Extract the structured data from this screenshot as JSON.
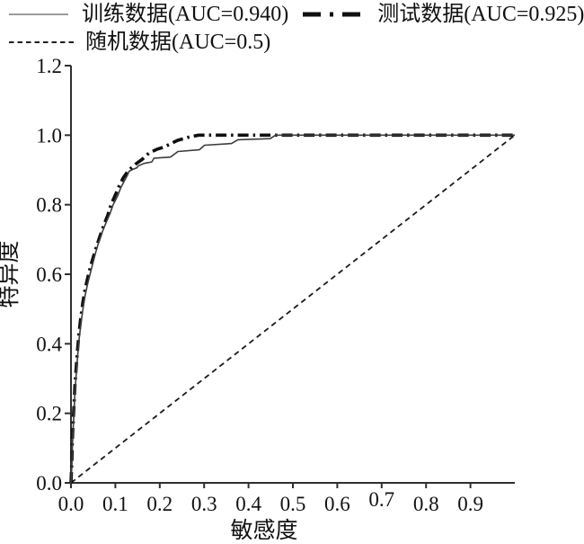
{
  "figure": {
    "background": "#ffffff",
    "axis_color": "#2f2f2f",
    "text_color": "#111111"
  },
  "legend": {
    "position": "top",
    "items": [
      {
        "id": "training",
        "label": "训练数据(AUC=0.940)",
        "marker": "solid-thin-line",
        "marker_color": "#9b9b9b",
        "marker_width": 2,
        "marker_dash": "",
        "marker_len": 66
      },
      {
        "id": "test",
        "label": "测试数据(AUC=0.925)",
        "marker": "thick-dash-dot-line",
        "marker_color": "#0f0f0f",
        "marker_width": 5,
        "marker_dash": "20 10 4 10",
        "marker_len": 70
      },
      {
        "id": "random",
        "label": "随机数据(AUC=0.5)",
        "marker": "dashed-line",
        "marker_color": "#1f1f1f",
        "marker_width": 2,
        "marker_dash": "5.5 4",
        "marker_len": 72
      }
    ]
  },
  "chart_data": {
    "type": "line",
    "title": "",
    "xlabel": "敏感度",
    "ylabel": "特异度",
    "xlim": [
      0,
      1.0
    ],
    "ylim": [
      0,
      1.2
    ],
    "grid": false,
    "legend_position": "top",
    "axis_color": "#2f2f2f",
    "x_ticks": [
      {
        "v": 0.0,
        "label": "0.0",
        "dy": 0
      },
      {
        "v": 0.1,
        "label": "0.1",
        "dy": 0
      },
      {
        "v": 0.2,
        "label": "0.2",
        "dy": 0
      },
      {
        "v": 0.3,
        "label": "0.3",
        "dy": 0
      },
      {
        "v": 0.4,
        "label": "0.4",
        "dy": 0
      },
      {
        "v": 0.5,
        "label": "0.5",
        "dy": 0
      },
      {
        "v": 0.6,
        "label": "0.6",
        "dy": 0
      },
      {
        "v": 0.7,
        "label": "0.7",
        "dy": -5
      },
      {
        "v": 0.8,
        "label": "0.8",
        "dy": 0
      },
      {
        "v": 0.9,
        "label": "0.9",
        "dy": 0
      }
    ],
    "y_ticks": [
      {
        "v": 0.0,
        "label": "0.0"
      },
      {
        "v": 0.2,
        "label": "0.2"
      },
      {
        "v": 0.4,
        "label": "0.4"
      },
      {
        "v": 0.6,
        "label": "0.6"
      },
      {
        "v": 0.8,
        "label": "0.8"
      },
      {
        "v": 1.0,
        "label": "1.0"
      },
      {
        "v": 1.2,
        "label": "1.2"
      }
    ],
    "series": [
      {
        "id": "training",
        "name": "训练数据",
        "auc": 0.94,
        "color": "#3c3c3c",
        "width": 1.6,
        "dash": "",
        "points": [
          [
            0,
            0
          ],
          [
            0.002,
            0.05
          ],
          [
            0.003,
            0.1
          ],
          [
            0.005,
            0.16
          ],
          [
            0.007,
            0.21
          ],
          [
            0.009,
            0.26
          ],
          [
            0.012,
            0.315
          ],
          [
            0.015,
            0.365
          ],
          [
            0.018,
            0.41
          ],
          [
            0.022,
            0.455
          ],
          [
            0.027,
            0.5
          ],
          [
            0.032,
            0.54
          ],
          [
            0.038,
            0.575
          ],
          [
            0.043,
            0.6
          ],
          [
            0.048,
            0.625
          ],
          [
            0.055,
            0.66
          ],
          [
            0.062,
            0.69
          ],
          [
            0.07,
            0.72
          ],
          [
            0.078,
            0.745
          ],
          [
            0.088,
            0.775
          ],
          [
            0.095,
            0.8
          ],
          [
            0.105,
            0.825
          ],
          [
            0.112,
            0.848
          ],
          [
            0.12,
            0.868
          ],
          [
            0.126,
            0.882
          ],
          [
            0.131,
            0.896
          ],
          [
            0.14,
            0.902
          ],
          [
            0.148,
            0.906
          ],
          [
            0.152,
            0.912
          ],
          [
            0.165,
            0.919
          ],
          [
            0.182,
            0.923
          ],
          [
            0.187,
            0.934
          ],
          [
            0.224,
            0.937
          ],
          [
            0.241,
            0.953
          ],
          [
            0.289,
            0.958
          ],
          [
            0.301,
            0.971
          ],
          [
            0.362,
            0.976
          ],
          [
            0.376,
            0.987
          ],
          [
            0.449,
            0.99
          ],
          [
            0.461,
            1.0
          ],
          [
            1.0,
            1.0
          ]
        ]
      },
      {
        "id": "test",
        "name": "测试数据",
        "auc": 0.925,
        "color": "#0f0f0f",
        "width": 3.6,
        "dash": "12 5 2.5 5",
        "points": [
          [
            0,
            0
          ],
          [
            0.002,
            0.06
          ],
          [
            0.003,
            0.12
          ],
          [
            0.005,
            0.18
          ],
          [
            0.007,
            0.23
          ],
          [
            0.009,
            0.28
          ],
          [
            0.012,
            0.335
          ],
          [
            0.015,
            0.385
          ],
          [
            0.018,
            0.43
          ],
          [
            0.022,
            0.475
          ],
          [
            0.027,
            0.52
          ],
          [
            0.032,
            0.558
          ],
          [
            0.038,
            0.592
          ],
          [
            0.044,
            0.622
          ],
          [
            0.05,
            0.648
          ],
          [
            0.057,
            0.678
          ],
          [
            0.065,
            0.708
          ],
          [
            0.073,
            0.738
          ],
          [
            0.083,
            0.77
          ],
          [
            0.09,
            0.8
          ],
          [
            0.1,
            0.828
          ],
          [
            0.109,
            0.855
          ],
          [
            0.118,
            0.878
          ],
          [
            0.13,
            0.899
          ],
          [
            0.146,
            0.917
          ],
          [
            0.161,
            0.931
          ],
          [
            0.176,
            0.949
          ],
          [
            0.195,
            0.96
          ],
          [
            0.21,
            0.966
          ],
          [
            0.24,
            0.985
          ],
          [
            0.27,
            0.996
          ],
          [
            0.288,
            1.0
          ],
          [
            1.0,
            1.0
          ]
        ]
      },
      {
        "id": "random",
        "name": "随机数据",
        "auc": 0.5,
        "color": "#1a1a1a",
        "width": 1.8,
        "dash": "6 4.5",
        "points": [
          [
            0,
            0
          ],
          [
            1.0,
            1.0
          ]
        ]
      }
    ]
  }
}
